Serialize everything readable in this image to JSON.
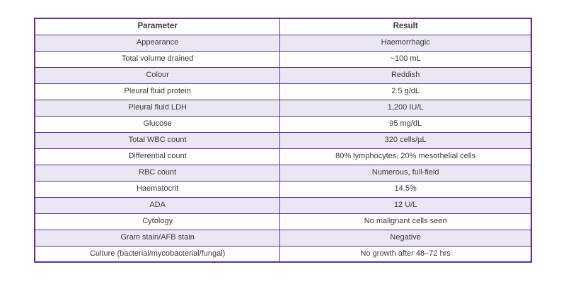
{
  "chart_data": {
    "type": "table",
    "columns": [
      "Parameter",
      "Result"
    ],
    "rows": [
      [
        "Appearance",
        "Haemorrhagic"
      ],
      [
        "Total volume drained",
        "~100 mL"
      ],
      [
        "Colour",
        "Reddish"
      ],
      [
        "Pleural fluid protein",
        "2.5 g/dL"
      ],
      [
        "Pleural fluid LDH",
        "1,200 IU/L"
      ],
      [
        "Glucose",
        "95 mg/dL"
      ],
      [
        "Total WBC count",
        "320 cells/µL"
      ],
      [
        "Differential count",
        "80% lymphocytes, 20% mesothelial cells"
      ],
      [
        "RBC count",
        "Numerous, full-field"
      ],
      [
        "Haematocrit",
        "14.5%"
      ],
      [
        "ADA",
        "12 U/L"
      ],
      [
        "Cytology",
        "No malignant cells seen"
      ],
      [
        "Gram stain/AFB stain",
        "Negative"
      ],
      [
        "Culture (bacterial/mycobacterial/fungal)",
        "No growth after 48–72 hrs"
      ]
    ],
    "layout": {
      "row_striping": "odd-data-rows-shaded",
      "text_align": "center",
      "header_background": "#ffffff"
    }
  },
  "colors": {
    "border_purple": "#5e3192",
    "row_shade": "#eae6f3",
    "text": "#3a3a42",
    "page_background": "#ffffff"
  }
}
